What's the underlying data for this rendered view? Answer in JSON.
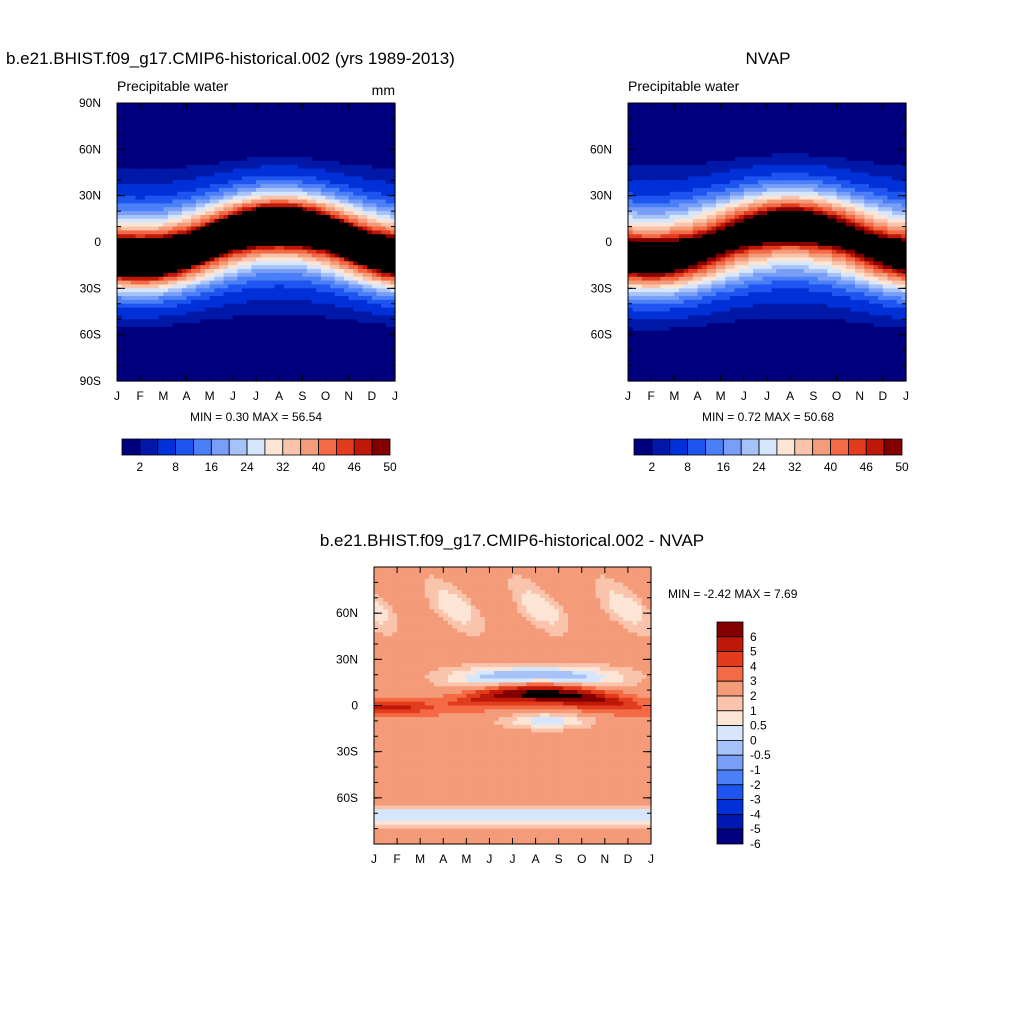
{
  "figure": {
    "panels": [
      {
        "title": "b.e21.BHIST.f09_g17.CMIP6-historical.002 (yrs 1989-2013)",
        "left_label": "Precipitable water",
        "right_label": "mm",
        "stats": "MIN =   0.30 MAX =  56.54"
      },
      {
        "title": "NVAP",
        "left_label": "Precipitable water",
        "right_label": "",
        "stats": "MIN =   0.72 MAX =  50.68"
      },
      {
        "title": "b.e21.BHIST.f09_g17.CMIP6-historical.002 - NVAP",
        "left_label": "",
        "right_label": "",
        "stats": "MIN =  -2.42 MAX =   7.69"
      }
    ]
  },
  "chart_data": [
    {
      "type": "heatmap",
      "title": "b.e21.BHIST.f09_g17.CMIP6-historical.002 (yrs 1989-2013)",
      "left_label": "Precipitable water",
      "units": "mm",
      "x_ticks": [
        "J",
        "F",
        "M",
        "A",
        "M",
        "J",
        "J",
        "A",
        "S",
        "O",
        "N",
        "D",
        "J"
      ],
      "y_ticks": [
        "90N",
        "60N",
        "30N",
        "0",
        "30S",
        "60S",
        "90S"
      ],
      "ylim": [
        -90,
        90
      ],
      "min": 0.3,
      "max": 56.54,
      "colorbar_labels": [
        "2",
        "8",
        "16",
        "24",
        "32",
        "40",
        "46",
        "50"
      ],
      "colorbar_levels": [
        2,
        4,
        8,
        12,
        16,
        20,
        24,
        28,
        32,
        36,
        40,
        44,
        46,
        48,
        50
      ],
      "colors": [
        "#00007f",
        "#0018a8",
        "#0030d8",
        "#1e55f0",
        "#4a7ff7",
        "#789ef7",
        "#a7c2f8",
        "#d6e6fc",
        "#fde5d6",
        "#f9c4ab",
        "#f49b7a",
        "#f36a45",
        "#e23c1c",
        "#c01808",
        "#820000"
      ]
    },
    {
      "type": "heatmap",
      "title": "NVAP",
      "left_label": "Precipitable water",
      "x_ticks": [
        "J",
        "F",
        "M",
        "A",
        "M",
        "J",
        "J",
        "A",
        "S",
        "O",
        "N",
        "D",
        "J"
      ],
      "y_ticks": [
        "60N",
        "30N",
        "0",
        "30S",
        "60S"
      ],
      "ylim": [
        -90,
        90
      ],
      "min": 0.72,
      "max": 50.68,
      "colorbar_labels": [
        "2",
        "8",
        "16",
        "24",
        "32",
        "40",
        "46",
        "50"
      ],
      "colorbar_levels": [
        2,
        4,
        8,
        12,
        16,
        20,
        24,
        28,
        32,
        36,
        40,
        44,
        46,
        48,
        50
      ],
      "colors": [
        "#00007f",
        "#0018a8",
        "#0030d8",
        "#1e55f0",
        "#4a7ff7",
        "#789ef7",
        "#a7c2f8",
        "#d6e6fc",
        "#fde5d6",
        "#f9c4ab",
        "#f49b7a",
        "#f36a45",
        "#e23c1c",
        "#c01808",
        "#820000"
      ]
    },
    {
      "type": "heatmap",
      "title": "b.e21.BHIST.f09_g17.CMIP6-historical.002 - NVAP",
      "x_ticks": [
        "J",
        "F",
        "M",
        "A",
        "M",
        "J",
        "J",
        "A",
        "S",
        "O",
        "N",
        "D",
        "J"
      ],
      "y_ticks": [
        "60N",
        "30N",
        "0",
        "30S",
        "60S"
      ],
      "ylim": [
        -90,
        90
      ],
      "min": -2.42,
      "max": 7.69,
      "colorbar_labels": [
        "6",
        "5",
        "4",
        "3",
        "2",
        "1",
        "0.5",
        "0",
        "-0.5",
        "-1",
        "-2",
        "-3",
        "-4",
        "-5",
        "-6"
      ],
      "colorbar_levels": [
        -6,
        -5,
        -4,
        -3,
        -2,
        -1,
        -0.5,
        0,
        0.5,
        1,
        2,
        3,
        4,
        5,
        6
      ],
      "colors": [
        "#00007f",
        "#0018b0",
        "#0030d8",
        "#1e55f0",
        "#4a7ff7",
        "#789ef7",
        "#a7c2f8",
        "#d6e6fc",
        "#fde5d6",
        "#f9c4ab",
        "#f49b7a",
        "#f36a45",
        "#e23c1c",
        "#c01808",
        "#820000"
      ]
    }
  ]
}
